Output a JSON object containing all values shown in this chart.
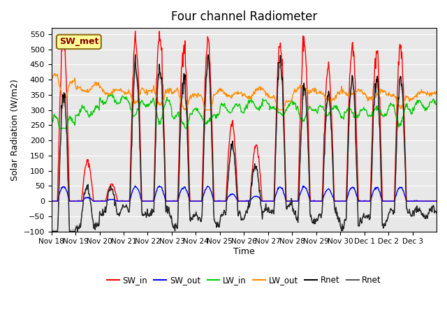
{
  "title": "Four channel Radiometer",
  "xlabel": "Time",
  "ylabel": "Solar Radiation (W/m2)",
  "ylim": [
    -100,
    570
  ],
  "yticks": [
    -100,
    -50,
    0,
    50,
    100,
    150,
    200,
    250,
    300,
    350,
    400,
    450,
    500,
    550
  ],
  "x_labels": [
    "Nov 18",
    "Nov 19",
    "Nov 20",
    "Nov 21",
    "Nov 22",
    "Nov 23",
    "Nov 24",
    "Nov 25",
    "Nov 26",
    "Nov 27",
    "Nov 28",
    "Nov 29",
    "Nov 30",
    "Dec 1",
    "Dec 2",
    "Dec 3"
  ],
  "annotation_text": "SW_met",
  "colors": {
    "SW_in": "#FF0000",
    "SW_out": "#0000FF",
    "LW_in": "#00CC00",
    "LW_out": "#FF8C00",
    "Rnet_black": "#000000",
    "Rnet_dark": "#555555"
  },
  "bg_color": "#E8E8E8",
  "figsize": [
    6.4,
    4.8
  ],
  "dpi": 100
}
